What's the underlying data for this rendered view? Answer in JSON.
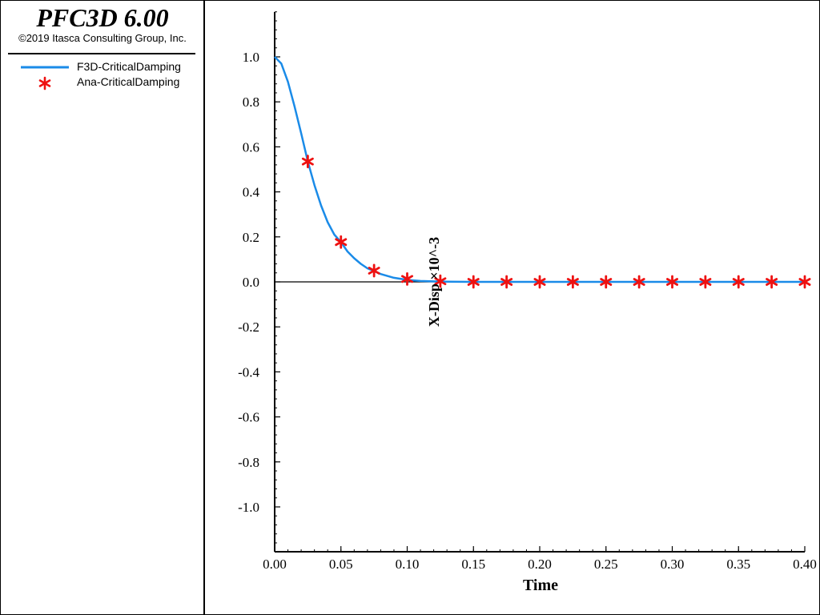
{
  "app": {
    "title": "PFC3D 6.00",
    "copyright": "©2019 Itasca Consulting Group, Inc."
  },
  "legend": {
    "items": [
      {
        "label": "F3D-CriticalDamping",
        "symbol": "line",
        "color": "#1a8be8"
      },
      {
        "label": "Ana-CriticalDamping",
        "symbol": "star",
        "color": "#ee1111"
      }
    ]
  },
  "colors": {
    "line": "#1a8be8",
    "marker": "#ee1111",
    "axis": "#000000"
  },
  "chart_data": {
    "type": "line",
    "title": "",
    "xlabel": "Time",
    "ylabel": "X-Disp ×10^-3",
    "xlim": [
      0.0,
      0.4
    ],
    "ylim": [
      -1.2,
      1.2
    ],
    "x_ticks": [
      0.0,
      0.05,
      0.1,
      0.15,
      0.2,
      0.25,
      0.3,
      0.35,
      0.4
    ],
    "x_tick_labels": [
      "0.00",
      "0.05",
      "0.10",
      "0.15",
      "0.20",
      "0.25",
      "0.30",
      "0.35",
      "0.40"
    ],
    "y_ticks": [
      1.0,
      0.8,
      0.6,
      0.4,
      0.2,
      0.0,
      -0.2,
      -0.4,
      -0.6,
      -0.8,
      -1.0
    ],
    "y_tick_labels": [
      "1.0",
      "0.8",
      "0.6",
      "0.4",
      "0.2",
      "0.0",
      "-0.2",
      "-0.4",
      "-0.6",
      "-0.8",
      "-1.0"
    ],
    "grid": false,
    "legend": "left panel",
    "series": [
      {
        "name": "F3D-CriticalDamping",
        "style": "line",
        "x": [
          0.0,
          0.005,
          0.01,
          0.015,
          0.02,
          0.025,
          0.03,
          0.035,
          0.04,
          0.045,
          0.05,
          0.055,
          0.06,
          0.065,
          0.07,
          0.075,
          0.08,
          0.09,
          0.1,
          0.11,
          0.12,
          0.13,
          0.15,
          0.2,
          0.25,
          0.3,
          0.35,
          0.4
        ],
        "y": [
          1.0,
          0.97,
          0.89,
          0.78,
          0.66,
          0.535,
          0.43,
          0.34,
          0.265,
          0.21,
          0.177,
          0.135,
          0.105,
          0.08,
          0.06,
          0.048,
          0.035,
          0.018,
          0.009,
          0.004,
          0.002,
          0.001,
          0.0,
          0.0,
          0.0,
          0.0,
          0.0,
          0.0
        ]
      },
      {
        "name": "Ana-CriticalDamping",
        "style": "star",
        "x": [
          0.025,
          0.05,
          0.075,
          0.1,
          0.125,
          0.15,
          0.175,
          0.2,
          0.225,
          0.25,
          0.275,
          0.3,
          0.325,
          0.35,
          0.375,
          0.4
        ],
        "y": [
          0.535,
          0.177,
          0.05,
          0.013,
          0.003,
          0.0,
          0.0,
          0.0,
          0.0,
          0.0,
          0.0,
          0.0,
          0.0,
          0.0,
          0.0,
          0.0
        ]
      }
    ]
  }
}
